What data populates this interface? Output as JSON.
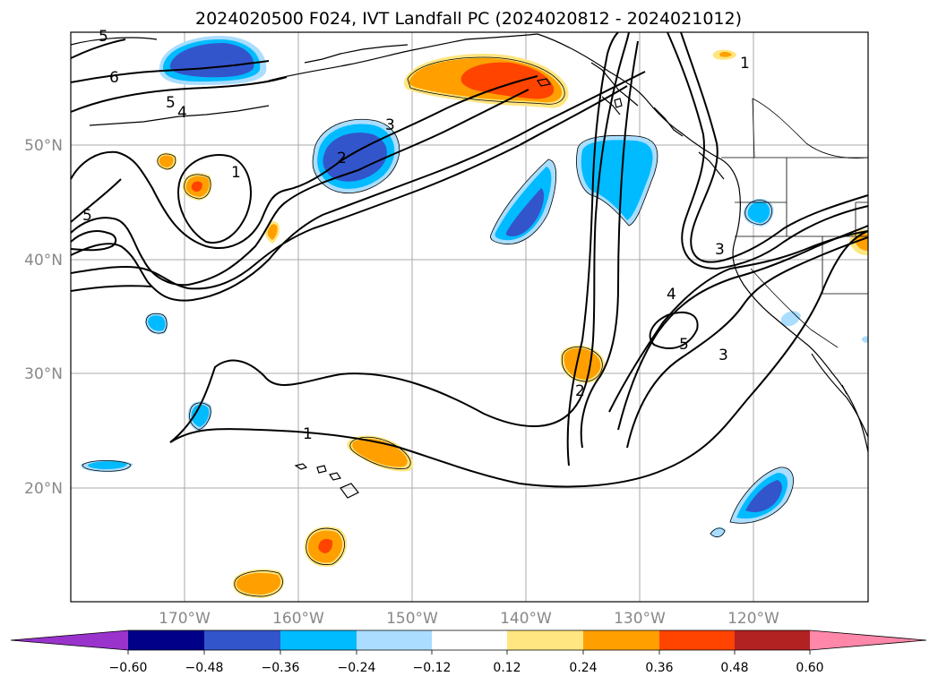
{
  "title": "2024020500 F024, IVT Landfall PC (2024020812 - 2024021012)",
  "map": {
    "lat_labels": [
      "50°N",
      "40°N",
      "30°N",
      "20°N"
    ],
    "lon_labels": [
      "170°W",
      "160°W",
      "150°W",
      "140°W",
      "130°W",
      "120°W"
    ],
    "contour_labels": [
      "5",
      "6",
      "5",
      "4",
      "3",
      "2",
      "1",
      "5",
      "2",
      "1",
      "1",
      "3",
      "4",
      "5",
      "3"
    ]
  },
  "colorbar": {
    "ticks": [
      "−0.60",
      "−0.48",
      "−0.36",
      "−0.24",
      "−0.12",
      "0.12",
      "0.24",
      "0.36",
      "0.48",
      "0.60"
    ],
    "colors": {
      "under": "#9933cc",
      "neg_060_048": "#000088",
      "neg_048_036": "#3355cc",
      "neg_036_024": "#00bbff",
      "neg_024_012": "#aaddff",
      "neutral": "#ffffff",
      "pos_012_024": "#ffe680",
      "pos_024_036": "#ffa000",
      "pos_036_048": "#ff4400",
      "pos_048_060": "#b22222",
      "over": "#ff88aa"
    }
  }
}
